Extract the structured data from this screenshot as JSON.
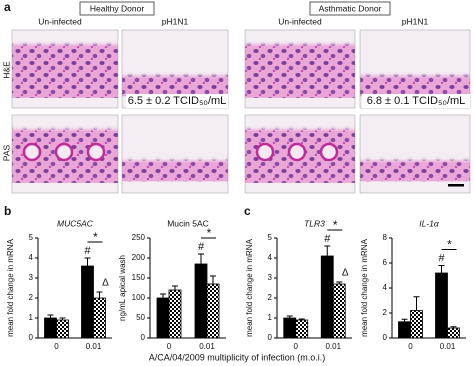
{
  "panel_a": {
    "label": "a",
    "groups": [
      {
        "name": "Healthy Donor",
        "columns": [
          "Un-infected",
          "pH1N1"
        ]
      },
      {
        "name": "Asthmatic Donor",
        "columns": [
          "Un-infected",
          "pH1N1"
        ]
      }
    ],
    "rows": [
      "H&E",
      "PAS"
    ],
    "titers": [
      "6.5 ± 0.2 TCID₅₀/mL",
      "6.8 ± 0.1 TCID₅₀/mL"
    ]
  },
  "panel_b_label": "b",
  "panel_c_label": "c",
  "x_axis_label": "A/CA/04/2009 multiplicity of infection (m.o.i.)",
  "chart_data": [
    {
      "type": "bar",
      "title": "MUC5AC",
      "title_italic": true,
      "y_label": "mean fold change in mRNA",
      "categories": [
        "0",
        "0.01"
      ],
      "series": [
        {
          "color": "#000000",
          "values": [
            1.0,
            3.6
          ],
          "errors": [
            0.15,
            0.4
          ]
        },
        {
          "color": "#000000",
          "pattern": "checker",
          "values": [
            0.9,
            2.0
          ],
          "errors": [
            0.1,
            0.3
          ]
        }
      ],
      "ylim": [
        0,
        5
      ],
      "yticks": [
        0,
        1,
        2,
        3,
        4,
        5
      ],
      "annotations": [
        "#",
        "*",
        "Δ"
      ]
    },
    {
      "type": "bar",
      "title": "Mucin 5AC",
      "title_italic": false,
      "y_label": "ng/mL apical wash",
      "categories": [
        "0",
        "0.01"
      ],
      "series": [
        {
          "color": "#000000",
          "values": [
            100,
            185
          ],
          "errors": [
            10,
            25
          ]
        },
        {
          "color": "#000000",
          "pattern": "checker",
          "values": [
            120,
            135
          ],
          "errors": [
            10,
            20
          ]
        }
      ],
      "ylim": [
        0,
        250
      ],
      "yticks": [
        0,
        50,
        100,
        150,
        200,
        250
      ],
      "annotations": [
        "#",
        "*"
      ]
    },
    {
      "type": "bar",
      "title": "TLR3",
      "title_italic": true,
      "y_label": "mean fold change in mRNA",
      "categories": [
        "0",
        "0.01"
      ],
      "series": [
        {
          "color": "#000000",
          "values": [
            1.0,
            4.1
          ],
          "errors": [
            0.1,
            0.5
          ]
        },
        {
          "color": "#000000",
          "pattern": "checker",
          "values": [
            0.9,
            2.7
          ],
          "errors": [
            0.05,
            0.1
          ]
        }
      ],
      "ylim": [
        0,
        5
      ],
      "yticks": [
        0,
        1,
        2,
        3,
        4,
        5
      ],
      "annotations": [
        "#",
        "*",
        "Δ"
      ]
    },
    {
      "type": "bar",
      "title": "IL-1α",
      "title_italic": true,
      "y_label": "mean fold change in mRNA",
      "categories": [
        "0",
        "0.01"
      ],
      "series": [
        {
          "color": "#000000",
          "values": [
            1.3,
            5.2
          ],
          "errors": [
            0.2,
            0.6
          ]
        },
        {
          "color": "#000000",
          "pattern": "checker",
          "values": [
            2.2,
            0.8
          ],
          "errors": [
            1.1,
            0.1
          ]
        }
      ],
      "ylim": [
        0,
        8
      ],
      "yticks": [
        0,
        2,
        4,
        6,
        8
      ],
      "annotations": [
        "#",
        "*"
      ]
    }
  ]
}
